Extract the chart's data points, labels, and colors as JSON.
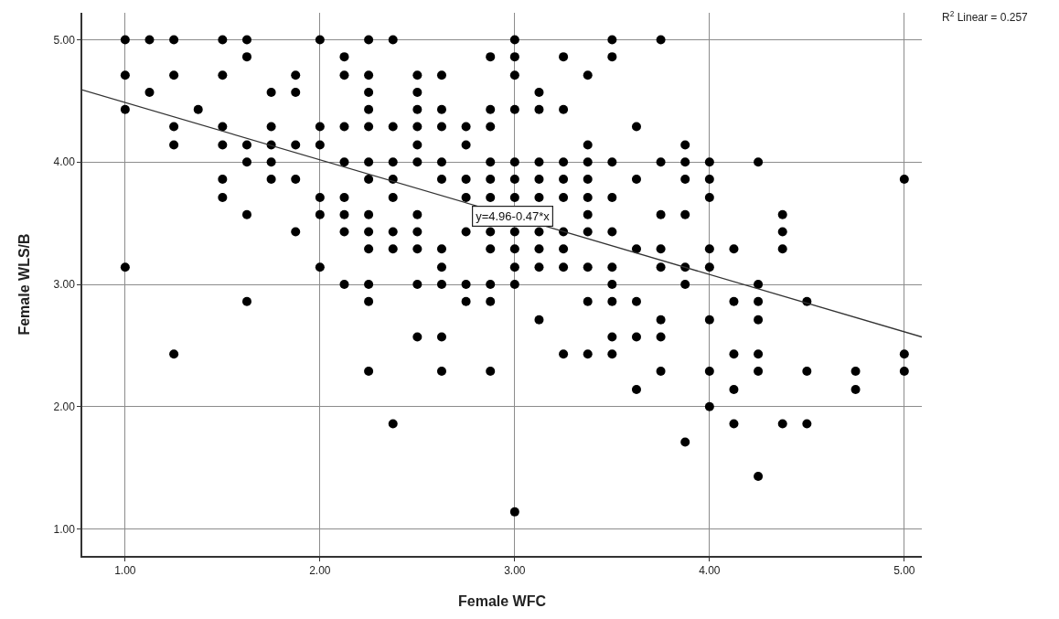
{
  "chart_data": {
    "type": "scatter",
    "xlabel": "Female WFC",
    "ylabel": "Female WLS/B",
    "xlim": [
      0.78,
      5.09
    ],
    "ylim": [
      0.78,
      5.22
    ],
    "xticks": [
      {
        "value": 1,
        "label": "1.00"
      },
      {
        "value": 2,
        "label": "2.00"
      },
      {
        "value": 3,
        "label": "3.00"
      },
      {
        "value": 4,
        "label": "4.00"
      },
      {
        "value": 5,
        "label": "5.00"
      }
    ],
    "yticks": [
      {
        "value": 1,
        "label": "1.00"
      },
      {
        "value": 2,
        "label": "2.00"
      },
      {
        "value": 3,
        "label": "3.00"
      },
      {
        "value": 4,
        "label": "4.00"
      },
      {
        "value": 5,
        "label": "5.00"
      }
    ],
    "grid": true,
    "series": [
      {
        "color": "#000000",
        "marker": "circle",
        "x": [
          1,
          1,
          1,
          1,
          1.125,
          1.125,
          1.25,
          1.25,
          1.25,
          1.25,
          1.25,
          1.375,
          1.5,
          1.5,
          1.5,
          1.5,
          1.5,
          1.5,
          1.625,
          1.625,
          1.625,
          1.625,
          1.625,
          1.625,
          1.75,
          1.75,
          1.75,
          1.75,
          1.75,
          1.875,
          1.875,
          1.875,
          1.875,
          1.875,
          2,
          2,
          2,
          2,
          2,
          2,
          2.125,
          2.125,
          2.125,
          2.125,
          2.125,
          2.125,
          2.125,
          2.125,
          2.25,
          2.25,
          2.25,
          2.25,
          2.25,
          2.25,
          2.25,
          2.25,
          2.25,
          2.25,
          2.25,
          2.25,
          2.25,
          2.375,
          2.375,
          2.375,
          2.375,
          2.375,
          2.375,
          2.375,
          2.375,
          2.5,
          2.5,
          2.5,
          2.5,
          2.5,
          2.5,
          2.5,
          2.5,
          2.5,
          2.5,
          2.5,
          2.625,
          2.625,
          2.625,
          2.625,
          2.625,
          2.625,
          2.625,
          2.625,
          2.625,
          2.625,
          2.75,
          2.75,
          2.75,
          2.75,
          2.75,
          2.75,
          2.75,
          2.875,
          2.875,
          2.875,
          2.875,
          2.875,
          2.875,
          2.875,
          2.875,
          2.875,
          2.875,
          2.875,
          3,
          3,
          3,
          3,
          3,
          3,
          3,
          3,
          3,
          3,
          3,
          3,
          3.125,
          3.125,
          3.125,
          3.125,
          3.125,
          3.125,
          3.125,
          3.125,
          3.125,
          3.25,
          3.25,
          3.25,
          3.25,
          3.25,
          3.25,
          3.25,
          3.25,
          3.25,
          3.375,
          3.375,
          3.375,
          3.375,
          3.375,
          3.375,
          3.375,
          3.375,
          3.375,
          3.375,
          3.5,
          3.5,
          3.5,
          3.5,
          3.5,
          3.5,
          3.5,
          3.5,
          3.5,
          3.5,
          3.625,
          3.625,
          3.625,
          3.625,
          3.625,
          3.625,
          3.75,
          3.75,
          3.75,
          3.75,
          3.75,
          3.75,
          3.75,
          3.75,
          3.875,
          3.875,
          3.875,
          3.875,
          3.875,
          3.875,
          3.875,
          4,
          4,
          4,
          4,
          4,
          4,
          4,
          4,
          4.125,
          4.125,
          4.125,
          4.125,
          4.125,
          4.25,
          4.25,
          4.25,
          4.25,
          4.25,
          4.25,
          4.25,
          4.375,
          4.375,
          4.375,
          4.375,
          4.5,
          4.5,
          4.5,
          4.75,
          4.75,
          5,
          5,
          5
        ],
        "values": [
          5,
          4.71,
          4.43,
          3.14,
          5,
          4.57,
          5,
          4.71,
          4.29,
          4.14,
          2.43,
          4.43,
          5,
          4.71,
          4.29,
          4.14,
          3.86,
          3.71,
          5,
          4.86,
          4.14,
          4,
          3.57,
          2.86,
          4.57,
          4.29,
          4.14,
          4,
          3.86,
          4.71,
          4.57,
          4.14,
          3.86,
          3.43,
          5,
          4.29,
          4.14,
          3.71,
          3.57,
          3.14,
          4.86,
          4.71,
          4.29,
          4,
          3.71,
          3.57,
          3.43,
          3,
          5,
          4.71,
          4.57,
          4.43,
          4.29,
          4,
          3.86,
          3.57,
          3.43,
          3.29,
          3,
          2.86,
          2.29,
          5,
          4.29,
          4,
          3.86,
          3.71,
          3.43,
          3.29,
          1.86,
          4.71,
          4.57,
          4.43,
          4.29,
          4.14,
          4,
          3.57,
          3.43,
          3.29,
          3,
          2.57,
          4.71,
          4.43,
          4.29,
          4,
          3.86,
          3.29,
          3.14,
          3,
          2.57,
          2.29,
          4.29,
          4.14,
          3.86,
          3.71,
          3.43,
          3,
          2.86,
          4.86,
          4.43,
          4.29,
          4,
          3.86,
          3.71,
          3.43,
          3.29,
          3,
          2.86,
          2.29,
          5,
          4.86,
          4.71,
          4.43,
          4,
          3.86,
          3.71,
          3.43,
          3.29,
          3.14,
          3,
          1.14,
          4.57,
          4.43,
          4,
          3.86,
          3.71,
          3.43,
          3.29,
          3.14,
          2.71,
          4.86,
          4.43,
          4,
          3.86,
          3.71,
          3.43,
          3.29,
          3.14,
          2.43,
          4.71,
          4.14,
          4,
          3.86,
          3.71,
          3.57,
          3.43,
          3.14,
          2.86,
          2.43,
          5,
          4.86,
          4,
          3.71,
          3.43,
          3.14,
          3,
          2.86,
          2.57,
          2.43,
          4.29,
          3.86,
          3.29,
          2.86,
          2.57,
          2.14,
          5,
          4,
          3.57,
          3.29,
          3.14,
          2.71,
          2.57,
          2.29,
          4.14,
          4,
          3.86,
          3.57,
          3.14,
          3,
          1.71,
          4,
          3.86,
          3.71,
          3.29,
          3.14,
          2.71,
          2.29,
          2,
          3.29,
          2.86,
          2.43,
          2.14,
          1.86,
          4,
          3,
          2.86,
          2.71,
          2.43,
          2.29,
          1.43,
          3.57,
          3.43,
          3.29,
          1.86,
          2.86,
          2.29,
          1.86,
          2.29,
          2.14,
          3.86,
          2.43,
          2.29
        ]
      },
      {
        "type": "line",
        "color": "#333333",
        "marker": "none",
        "x": [
          0.78,
          5.09
        ],
        "values": [
          4.59,
          2.57
        ]
      }
    ],
    "annotations": [
      {
        "text": "y=4.96-0.47*x",
        "x": 2.99,
        "y": 3.56
      },
      "R$^{2}$ Linear = 0.257"
    ]
  }
}
